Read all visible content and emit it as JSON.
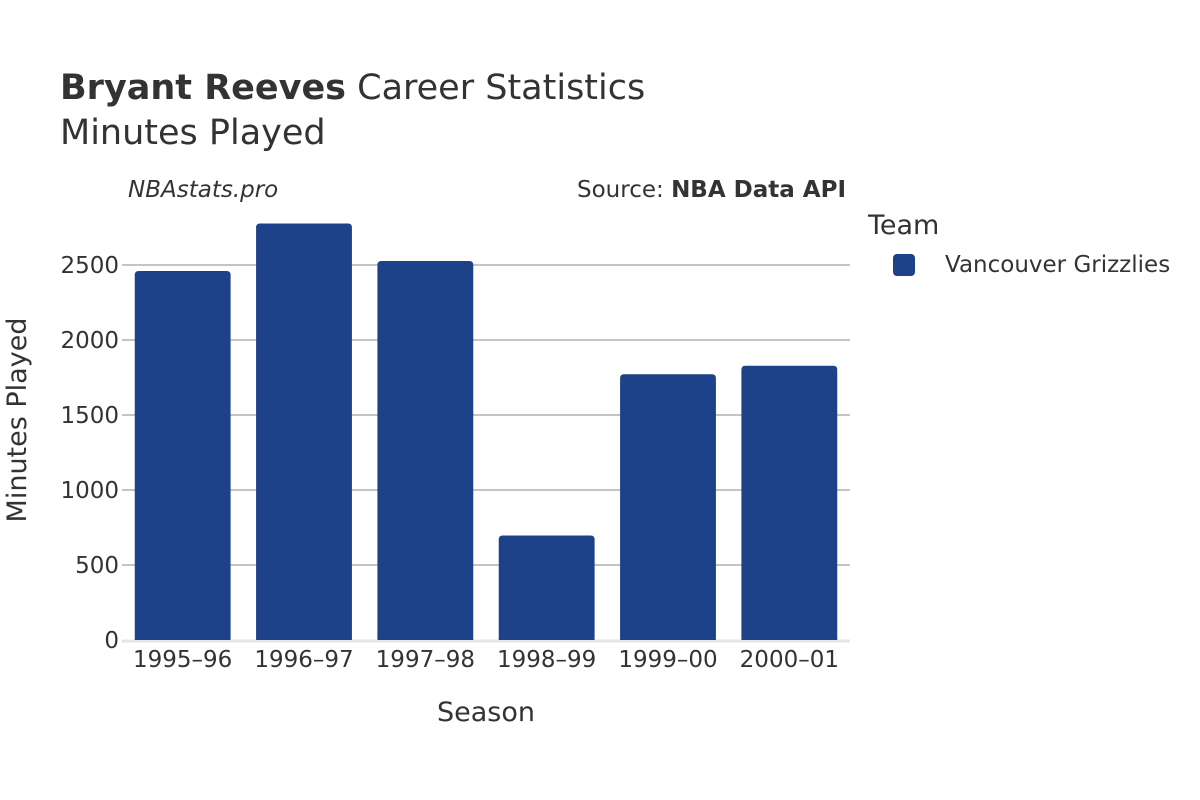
{
  "header": {
    "title_bold": "Bryant Reeves",
    "title_rest": " Career Statistics",
    "subtitle": "Minutes Played",
    "watermark": "NBAstats.pro",
    "source_prefix": "Source: ",
    "source_name": "NBA Data API"
  },
  "legend": {
    "title": "Team",
    "items": [
      {
        "label": "Vancouver Grizzlies",
        "color": "#1d428a"
      }
    ]
  },
  "chart_data": {
    "type": "bar",
    "title": "Bryant Reeves Career Statistics",
    "subtitle": "Minutes Played",
    "xlabel": "Season",
    "ylabel": "Minutes Played",
    "categories": [
      "1995–96",
      "1996–97",
      "1997–98",
      "1998–99",
      "1999–00",
      "2000–01"
    ],
    "series": [
      {
        "name": "Vancouver Grizzlies",
        "color": "#1d428a",
        "values": [
          2460,
          2777,
          2527,
          697,
          1772,
          1828
        ]
      }
    ],
    "yticks": [
      0,
      500,
      1000,
      1500,
      2000,
      2500
    ],
    "ylim": [
      0,
      2900
    ],
    "grid": true,
    "legend_position": "right"
  }
}
